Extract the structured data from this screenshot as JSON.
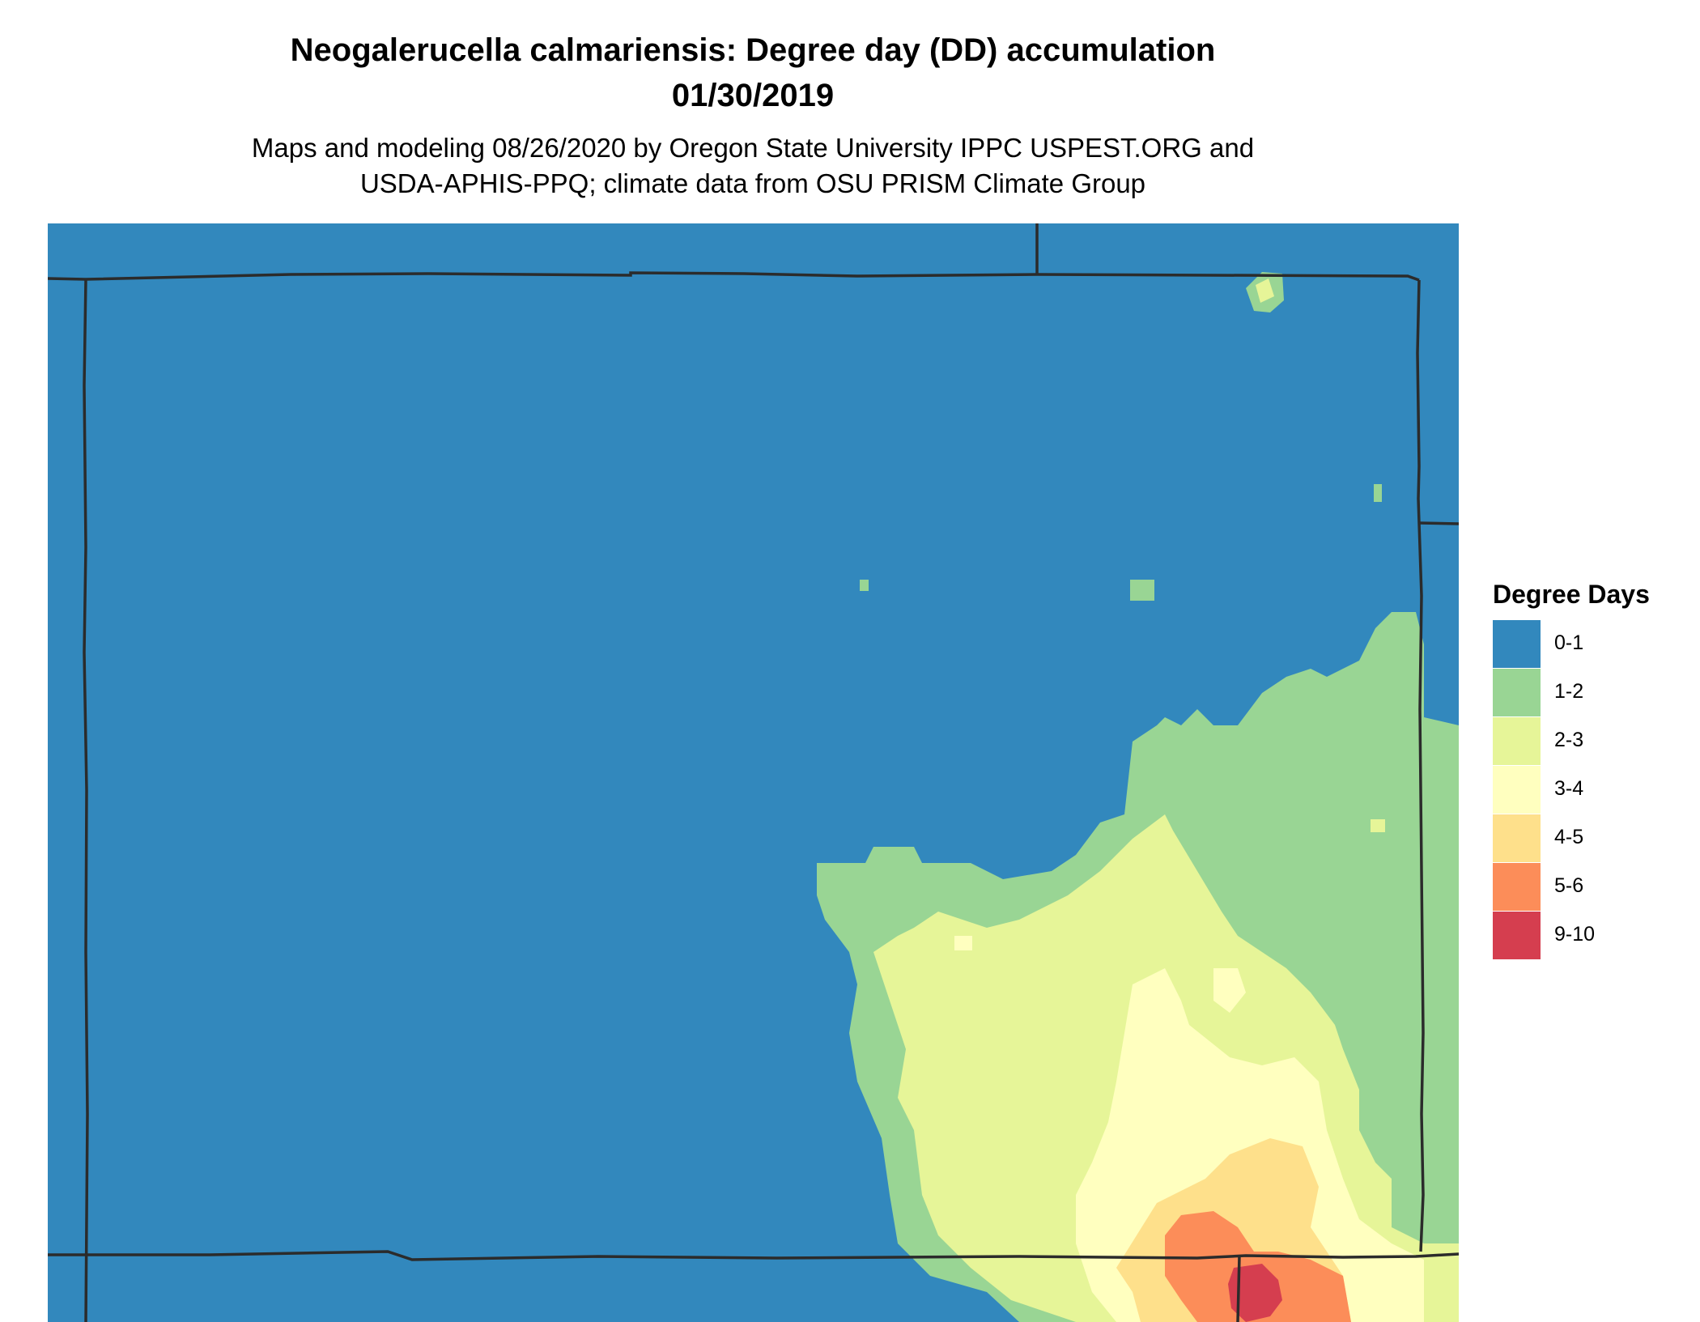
{
  "title_line1": "Neogalerucella calmariensis: Degree day (DD) accumulation",
  "title_line2": "01/30/2019",
  "subtitle_line1": "Maps and modeling 08/26/2020 by Oregon State University IPPC USPEST.ORG and",
  "subtitle_line2": "USDA-APHIS-PPQ; climate data from OSU PRISM Climate Group",
  "legend": {
    "title": "Degree Days",
    "items": [
      {
        "label": "0-1",
        "color": "#3288bd"
      },
      {
        "label": "1-2",
        "color": "#99d594"
      },
      {
        "label": "2-3",
        "color": "#e6f598"
      },
      {
        "label": "3-4",
        "color": "#ffffbf"
      },
      {
        "label": "4-5",
        "color": "#fee08b"
      },
      {
        "label": "5-6",
        "color": "#fc8d59"
      },
      {
        "label": "9-10",
        "color": "#d53e4f"
      }
    ]
  },
  "map_colors": {
    "water_or_base": "#3288bd",
    "border": "#2b2b2b"
  }
}
